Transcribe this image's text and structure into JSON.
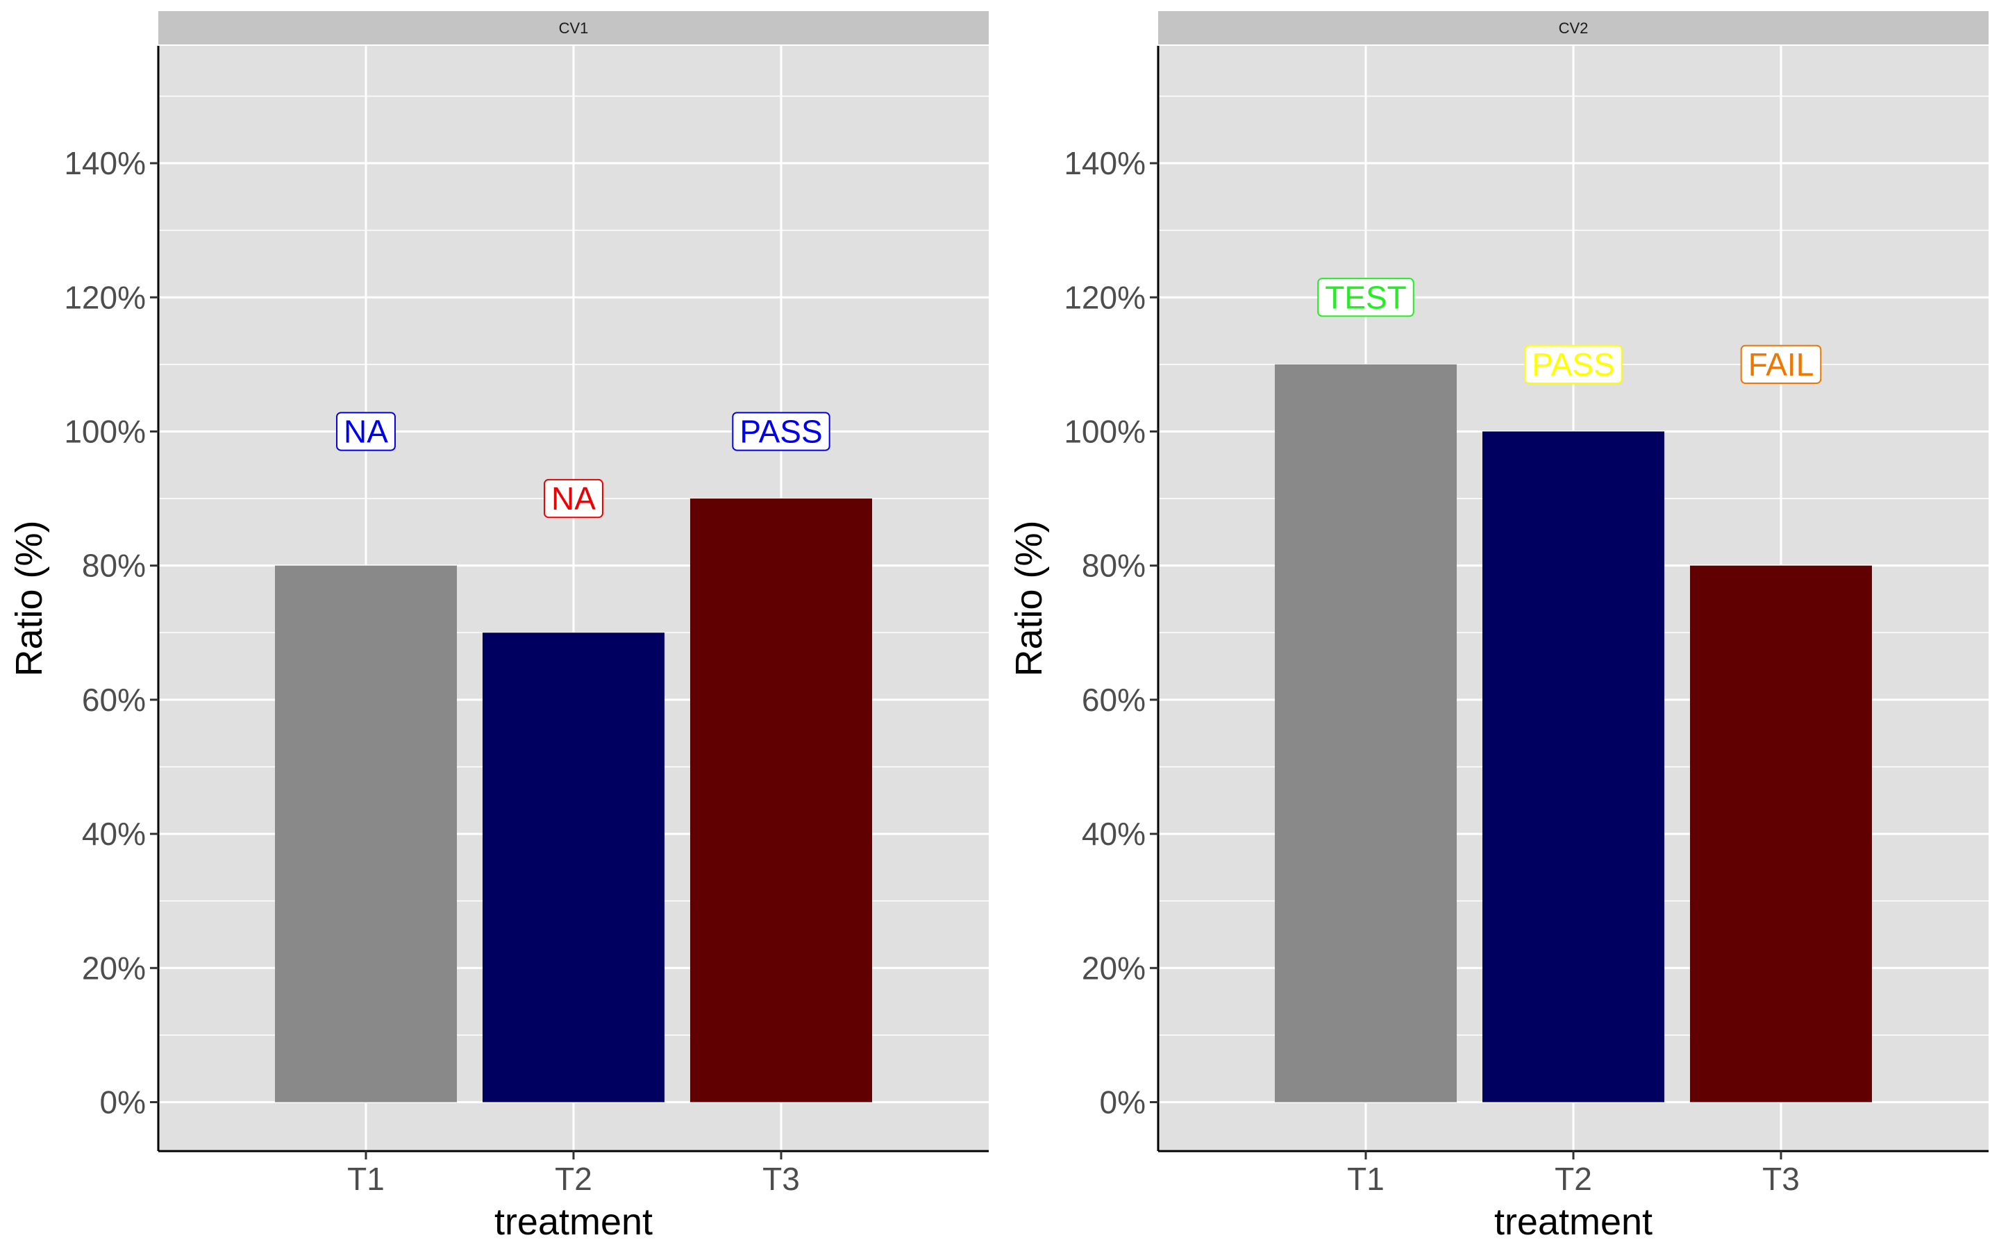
{
  "chart_data": [
    {
      "type": "bar",
      "facet": "CV1",
      "xlabel": "treatment",
      "ylabel": "Ratio (%)",
      "categories": [
        "T1",
        "T2",
        "T3"
      ],
      "values": [
        80,
        70,
        90
      ],
      "bar_colors": [
        "#898989",
        "#000060",
        "#600000"
      ],
      "labels": [
        {
          "text": "NA",
          "y": 100,
          "color": "#0000ee"
        },
        {
          "text": "NA",
          "y": 90,
          "color": "#ee0000"
        },
        {
          "text": "PASS",
          "y": 100,
          "color": "#0000ee"
        }
      ],
      "yticks": [
        "0%",
        "20%",
        "40%",
        "60%",
        "80%",
        "100%",
        "120%",
        "140%"
      ],
      "ylim": [
        -7.3,
        157.5
      ],
      "grid": true
    },
    {
      "type": "bar",
      "facet": "CV2",
      "xlabel": "treatment",
      "ylabel": "Ratio (%)",
      "categories": [
        "T1",
        "T2",
        "T3"
      ],
      "values": [
        110,
        100,
        80
      ],
      "bar_colors": [
        "#898989",
        "#000060",
        "#600000"
      ],
      "labels": [
        {
          "text": "TEST",
          "y": 120,
          "color": "#22ee22"
        },
        {
          "text": "PASS",
          "y": 110,
          "color": "#ffff00"
        },
        {
          "text": "FAIL",
          "y": 110,
          "color": "#ee7700"
        }
      ],
      "yticks": [
        "0%",
        "20%",
        "40%",
        "60%",
        "80%",
        "100%",
        "120%",
        "140%"
      ],
      "ylim": [
        -7.3,
        157.5
      ],
      "grid": true
    }
  ]
}
